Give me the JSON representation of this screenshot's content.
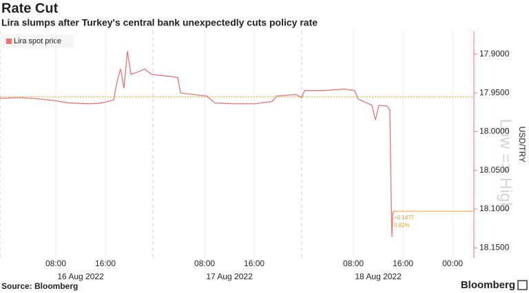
{
  "chart_data": {
    "type": "line",
    "title": "Rate Cut",
    "subtitle": "Lira slumps after Turkey's central bank unexpectedly cuts policy rate",
    "y_label": "USD/TRY",
    "y_direction_label": "Low => High",
    "source": "Source: Bloomberg",
    "logo": "Bloomberg",
    "inverted": true,
    "axis_side": "right",
    "grid": "x",
    "legend": "top-left",
    "x": [
      "2022-08-15T23:00",
      "2022-08-16T02:20",
      "2022-08-16T05:40",
      "2022-08-16T07:53",
      "2022-08-16T10:07",
      "2022-08-16T13:27",
      "2022-08-16T15:27",
      "2022-08-16T17:20",
      "2022-08-16T17:53",
      "2022-08-16T18:27",
      "2022-08-16T19:00",
      "2022-08-16T19:33",
      "2022-08-16T20:07",
      "2022-08-16T21:13",
      "2022-08-16T22:20",
      "2022-08-16T23:27",
      "2022-08-17T01:40",
      "2022-08-17T03:40",
      "2022-08-17T04:07",
      "2022-08-17T06:07",
      "2022-08-17T08:20",
      "2022-08-17T09:40",
      "2022-08-17T12:47",
      "2022-08-17T16:07",
      "2022-08-17T18:53",
      "2022-08-17T19:40",
      "2022-08-17T22:47",
      "2022-08-17T23:40",
      "2022-08-18T00:07",
      "2022-08-18T03:13",
      "2022-08-18T06:33",
      "2022-08-18T08:13",
      "2022-08-18T08:47",
      "2022-08-18T11:00",
      "2022-08-18T11:33",
      "2022-08-18T12:07",
      "2022-08-18T13:27",
      "2022-08-18T13:53",
      "2022-08-18T14:07",
      "2022-08-18T14:13",
      "2022-08-18T14:20",
      "2022-08-18T14:33"
    ],
    "series": [
      {
        "name": "Lira spot price",
        "color": "#f07070",
        "values": [
          17.957,
          17.956,
          17.958,
          17.96,
          17.963,
          17.964,
          17.963,
          17.959,
          17.935,
          17.919,
          17.944,
          17.896,
          17.926,
          17.923,
          17.919,
          17.926,
          17.928,
          17.93,
          17.95,
          17.952,
          17.954,
          17.963,
          17.964,
          17.964,
          17.961,
          17.954,
          17.952,
          17.956,
          17.947,
          17.947,
          17.945,
          17.947,
          17.958,
          17.966,
          17.985,
          17.966,
          17.967,
          17.972,
          18.096,
          18.136,
          18.105,
          18.1027
        ]
      }
    ],
    "reference_line": {
      "value": 17.955,
      "color": "#e8a020"
    },
    "last_value_annotation": {
      "lines": [
        "+0.1477",
        "0.82%"
      ],
      "color": "#e8a020"
    },
    "xlim": [
      "2022-08-15T23:00",
      "2022-08-19T03:26"
    ],
    "xticks": [
      {
        "value": "2022-08-16T08:00",
        "label": "08:00"
      },
      {
        "value": "2022-08-16T16:00",
        "label": "16:00"
      },
      {
        "value": "2022-08-17T08:00",
        "label": "08:00"
      },
      {
        "value": "2022-08-17T16:00",
        "label": "16:00"
      },
      {
        "value": "2022-08-18T08:00",
        "label": "08:00"
      },
      {
        "value": "2022-08-18T16:00",
        "label": "16:00"
      },
      {
        "value": "2022-08-19T00:00",
        "label": "00:00"
      }
    ],
    "xticks_dates": [
      {
        "value": "2022-08-16T12:00",
        "label": "16 Aug 2022"
      },
      {
        "value": "2022-08-17T12:00",
        "label": "17 Aug 2022"
      },
      {
        "value": "2022-08-18T12:00",
        "label": "18 Aug 2022"
      }
    ],
    "ylim": [
      17.87,
      18.163
    ],
    "yticks": [
      {
        "value": 17.9,
        "label": "17.9000"
      },
      {
        "value": 17.95,
        "label": "17.9500"
      },
      {
        "value": 18.0,
        "label": "18.0000"
      },
      {
        "value": 18.05,
        "label": "18.0500"
      },
      {
        "value": 18.1,
        "label": "18.1000"
      },
      {
        "value": 18.15,
        "label": "18.1500"
      }
    ]
  }
}
